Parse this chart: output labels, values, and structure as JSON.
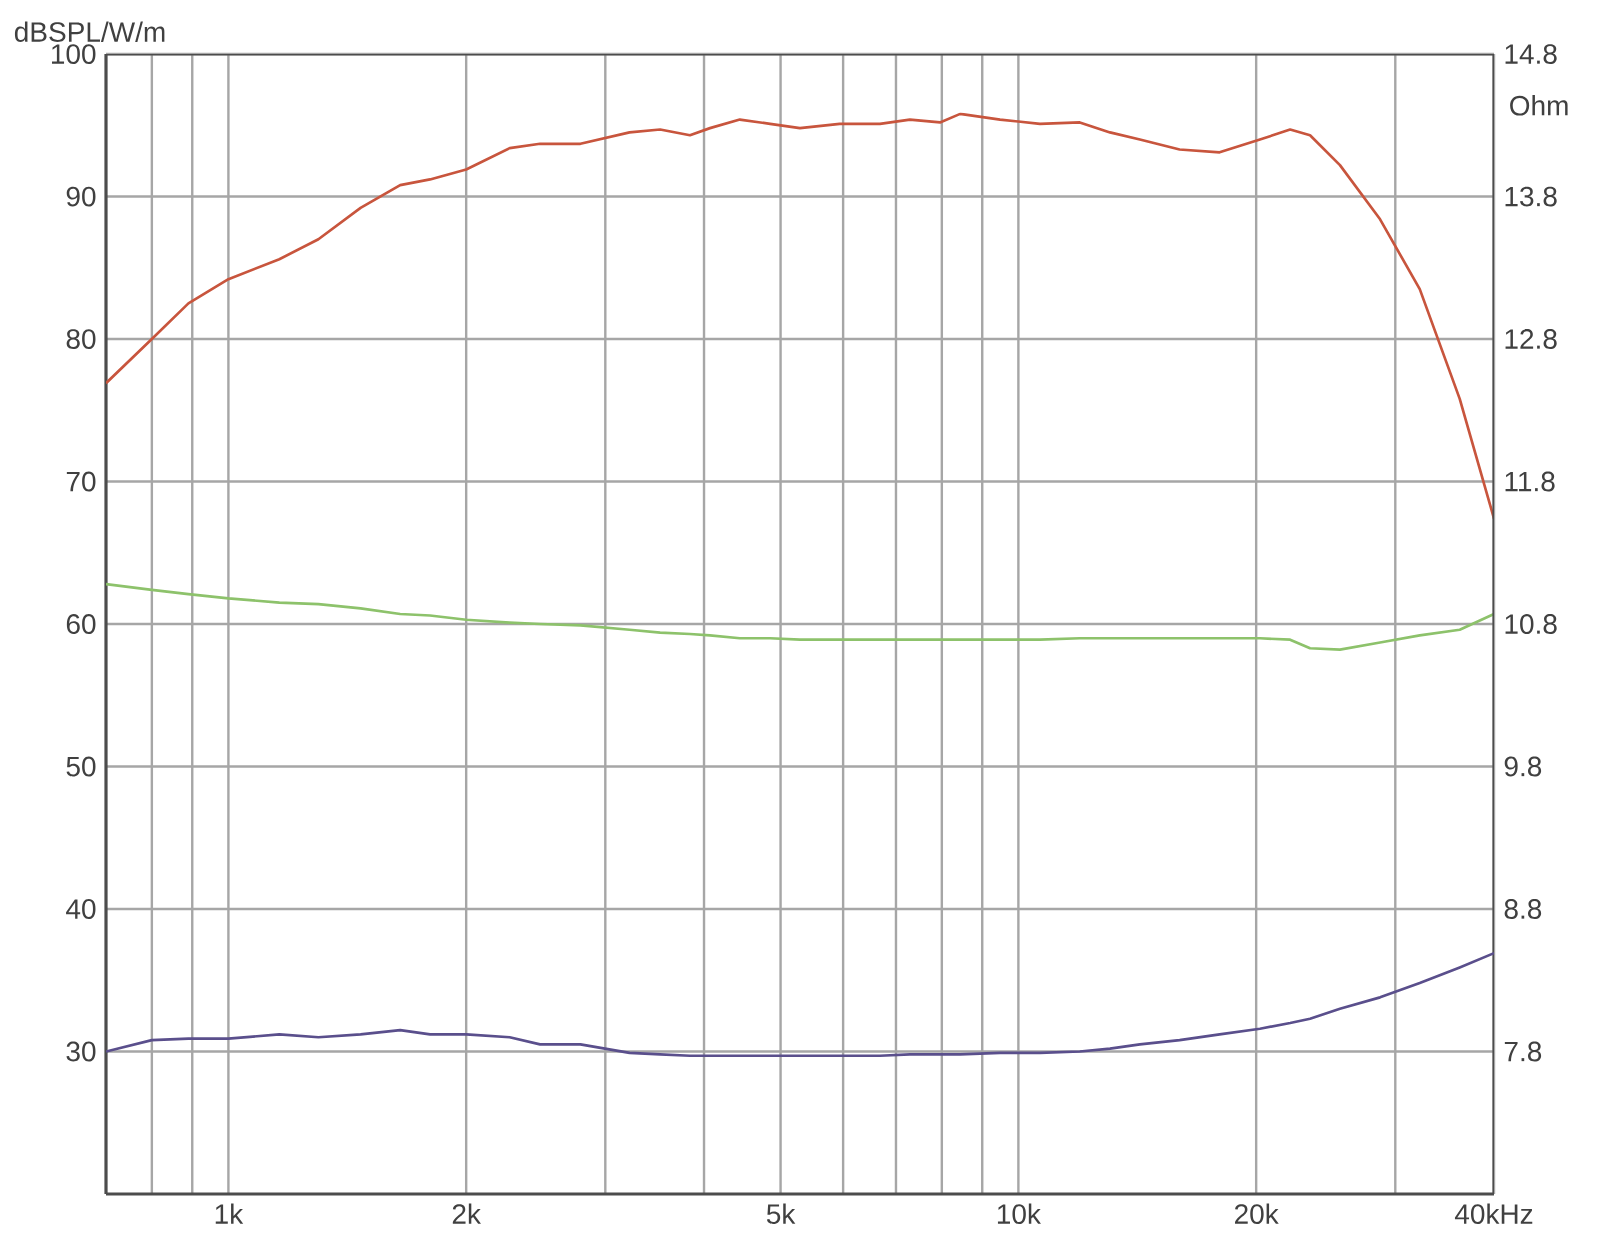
{
  "chart_data": {
    "type": "line",
    "ylabel": "dBSPL/W/m",
    "y2label": "Ohm",
    "log": "x",
    "grid": true,
    "xlim": [
      0.7,
      40
    ],
    "ylim": [
      20,
      100
    ],
    "y2lim": [
      6.8,
      14.8
    ],
    "xticks": [
      {
        "value": 0.8,
        "label": null
      },
      {
        "value": 0.9,
        "label": null
      },
      {
        "value": 1,
        "label": "1k"
      },
      {
        "value": 2,
        "label": "2k"
      },
      {
        "value": 3,
        "label": null
      },
      {
        "value": 4,
        "label": null
      },
      {
        "value": 5,
        "label": "5k"
      },
      {
        "value": 6,
        "label": null
      },
      {
        "value": 7,
        "label": null
      },
      {
        "value": 8,
        "label": null
      },
      {
        "value": 9,
        "label": null
      },
      {
        "value": 10,
        "label": "10k"
      },
      {
        "value": 20,
        "label": "20k"
      },
      {
        "value": 30,
        "label": null
      },
      {
        "value": 40,
        "label": "40kHz"
      }
    ],
    "yticks": [
      30,
      40,
      50,
      60,
      70,
      80,
      90,
      100
    ],
    "y2ticks": [
      7.8,
      8.8,
      9.8,
      10.8,
      11.8,
      12.8,
      13.8,
      14.8
    ],
    "x": [
      0.7,
      0.8,
      0.89,
      1.0,
      1.16,
      1.3,
      1.47,
      1.65,
      1.8,
      2.0,
      2.27,
      2.48,
      2.79,
      3.22,
      3.52,
      3.84,
      4.07,
      4.44,
      4.85,
      5.29,
      5.94,
      6.68,
      7.29,
      7.96,
      8.44,
      9.48,
      10.65,
      11.96,
      13.06,
      14.25,
      16.0,
      17.98,
      20.22,
      22.08,
      23.4,
      25.53,
      28.7,
      32.22,
      36.2,
      40
    ],
    "series": [
      {
        "color": "#c8553d",
        "values": [
          76.9,
          80,
          82.5,
          84.2,
          85.6,
          87,
          89.2,
          90.8,
          91.2,
          91.9,
          93.4,
          93.7,
          93.7,
          94.5,
          94.7,
          94.3,
          94.8,
          95.4,
          95.1,
          94.8,
          95.1,
          95.1,
          95.4,
          95.2,
          95.8,
          95.4,
          95.1,
          95.2,
          94.5,
          94,
          93.3,
          93.1,
          94,
          94.7,
          94.3,
          92.2,
          88.4,
          83.5,
          75.8,
          67.4
        ]
      },
      {
        "color": "#8dc26b",
        "values": [
          62.8,
          62.4,
          62.1,
          61.8,
          61.5,
          61.4,
          61.1,
          60.7,
          60.6,
          60.3,
          60.1,
          60,
          59.9,
          59.6,
          59.4,
          59.3,
          59.2,
          59,
          59,
          58.9,
          58.9,
          58.9,
          58.9,
          58.9,
          58.9,
          58.9,
          58.9,
          59,
          59,
          59,
          59,
          59,
          59,
          58.9,
          58.3,
          58.2,
          58.7,
          59.2,
          59.6,
          60.7
        ]
      },
      {
        "color": "#5a4f8c",
        "axis": "y2",
        "values": [
          7.8,
          7.88,
          7.89,
          7.89,
          7.92,
          7.9,
          7.92,
          7.95,
          7.92,
          7.92,
          7.9,
          7.85,
          7.85,
          7.79,
          7.78,
          7.77,
          7.77,
          7.77,
          7.77,
          7.77,
          7.77,
          7.77,
          7.78,
          7.78,
          7.78,
          7.79,
          7.79,
          7.8,
          7.82,
          7.85,
          7.88,
          7.92,
          7.96,
          8.0,
          8.03,
          8.1,
          8.18,
          8.28,
          8.39,
          8.49
        ]
      }
    ]
  }
}
